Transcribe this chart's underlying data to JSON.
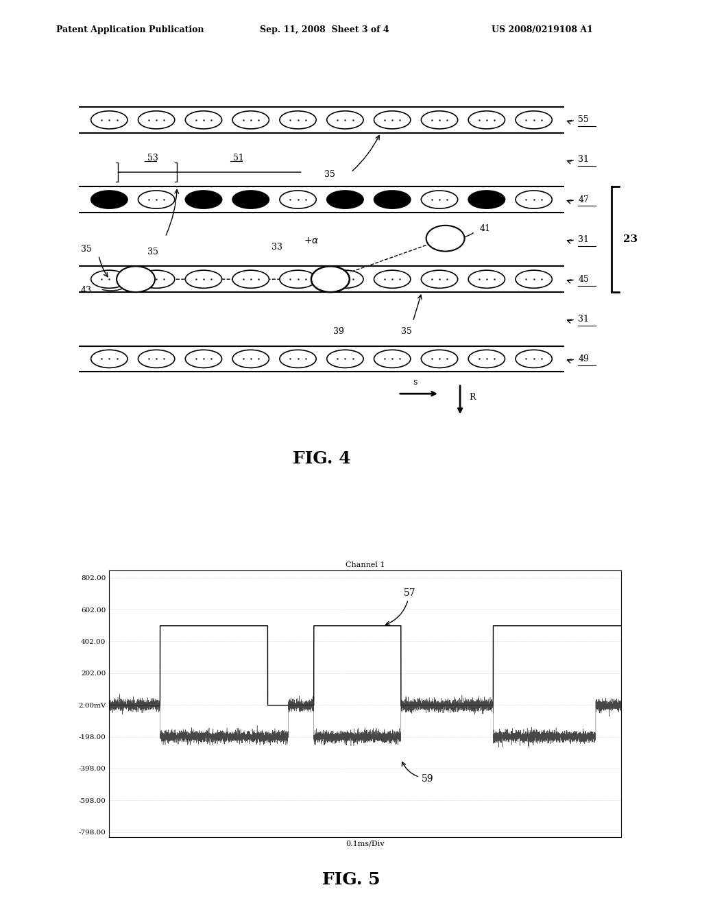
{
  "fig4_title": "FIG. 4",
  "fig5_title": "FIG. 5",
  "header_left": "Patent Application Publication",
  "header_center": "Sep. 11, 2008  Sheet 3 of 4",
  "header_right": "US 2008/0219108 A1",
  "fig5_xlabel": "0.1ms/Div",
  "fig5_channel": "Channel 1",
  "yticks": [
    "802.00",
    "602.00",
    "402.00",
    "202.00",
    "2.00mV",
    "-198.00",
    "-398.00",
    "-598.00",
    "-798.00"
  ],
  "ytick_vals": [
    802,
    602,
    402,
    202,
    2,
    -198,
    -398,
    -598,
    -798
  ],
  "bg_color": "#ffffff",
  "track_color": "#000000",
  "grid_color": "#cccccc",
  "pattern47": [
    true,
    false,
    true,
    true,
    false,
    true,
    true,
    false,
    true,
    false
  ]
}
